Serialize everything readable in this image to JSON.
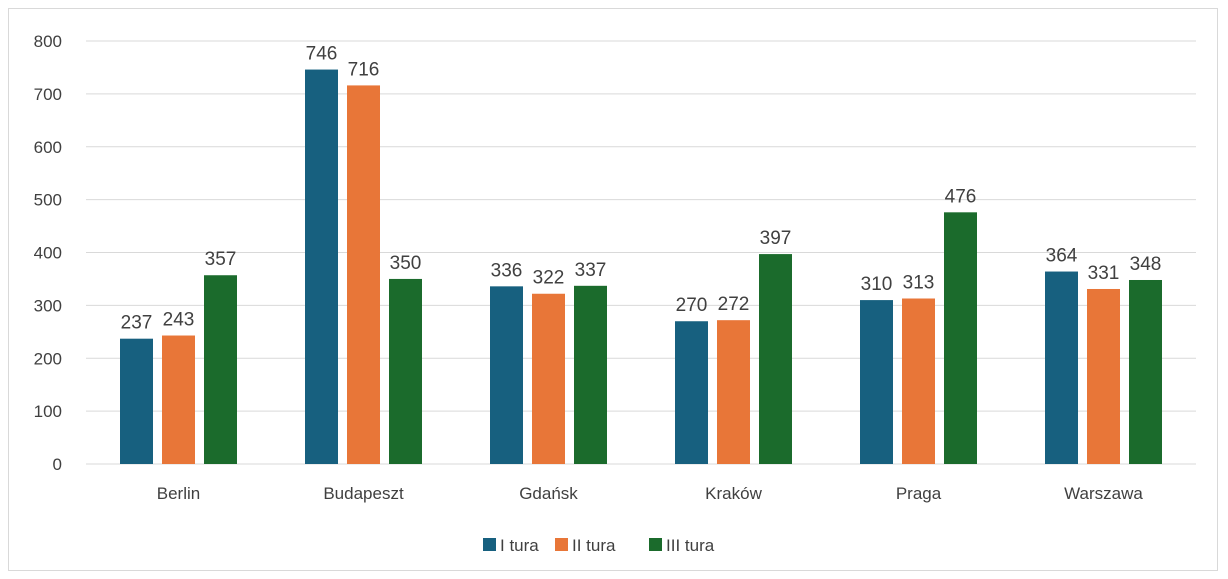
{
  "chart_data": {
    "type": "bar",
    "title": "",
    "xlabel": "",
    "ylabel": "",
    "categories": [
      "Berlin",
      "Budapeszt",
      "Gdańsk",
      "Kraków",
      "Praga",
      "Warszawa"
    ],
    "series": [
      {
        "name": "I tura",
        "color": "#17607f",
        "values": [
          237,
          746,
          336,
          270,
          310,
          364
        ]
      },
      {
        "name": "II tura",
        "color": "#e87638",
        "values": [
          243,
          716,
          322,
          272,
          313,
          331
        ]
      },
      {
        "name": "III tura",
        "color": "#1b6b2c",
        "values": [
          357,
          350,
          337,
          397,
          476,
          348
        ]
      }
    ],
    "ylim": [
      0,
      800
    ],
    "yticks": [
      0,
      100,
      200,
      300,
      400,
      500,
      600,
      700,
      800
    ],
    "grid": true,
    "legend_position": "bottom",
    "data_labels": true,
    "gridline_color": "#d9d9d9"
  }
}
